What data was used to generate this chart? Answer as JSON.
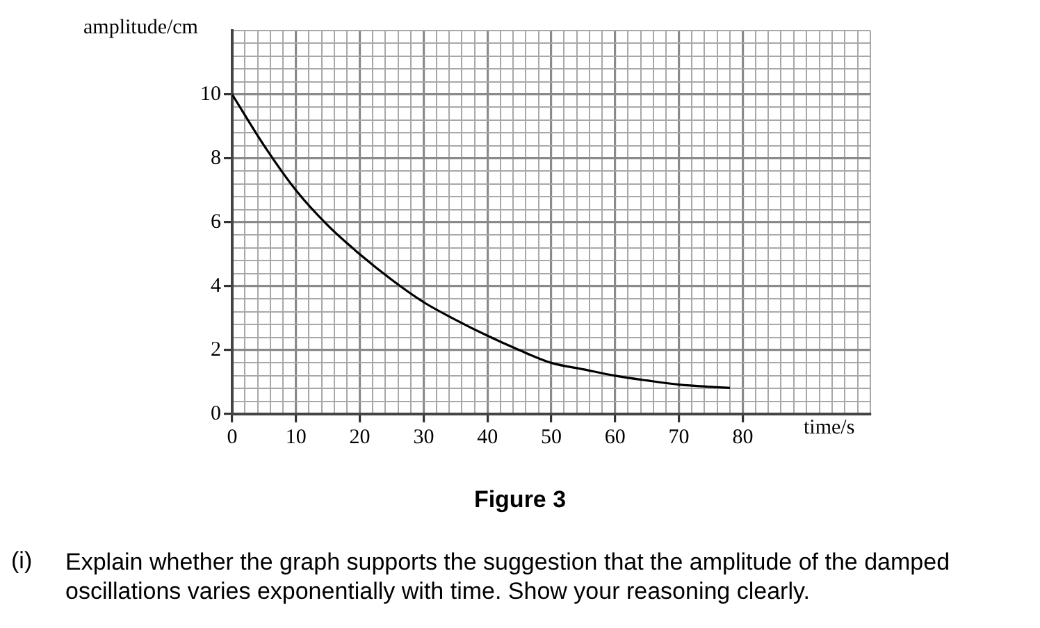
{
  "chart_data": {
    "type": "line",
    "xlabel": "time/s",
    "ylabel": "amplitude/cm",
    "x": [
      0,
      5,
      10,
      15,
      20,
      25,
      30,
      35,
      40,
      45,
      50,
      55,
      60,
      65,
      70,
      75,
      78
    ],
    "series": [
      {
        "color": "#000000",
        "values": [
          10,
          8.4,
          7.0,
          5.9,
          5.0,
          4.2,
          3.5,
          2.95,
          2.45,
          2.0,
          1.6,
          1.4,
          1.2,
          1.05,
          0.92,
          0.85,
          0.82
        ]
      }
    ],
    "xlim": [
      0,
      100
    ],
    "xticks": [
      0,
      {
        "value": 2,
        "label": null
      },
      {
        "value": 4,
        "label": null
      },
      {
        "value": 6,
        "label": null
      },
      {
        "value": 8,
        "label": null
      },
      10,
      {
        "value": 12,
        "label": null
      },
      {
        "value": 14,
        "label": null
      },
      {
        "value": 16,
        "label": null
      },
      {
        "value": 18,
        "label": null
      },
      20,
      {
        "value": 22,
        "label": null
      },
      {
        "value": 24,
        "label": null
      },
      {
        "value": 26,
        "label": null
      },
      {
        "value": 28,
        "label": null
      },
      30,
      {
        "value": 32,
        "label": null
      },
      {
        "value": 34,
        "label": null
      },
      {
        "value": 36,
        "label": null
      },
      {
        "value": 38,
        "label": null
      },
      40,
      {
        "value": 42,
        "label": null
      },
      {
        "value": 44,
        "label": null
      },
      {
        "value": 46,
        "label": null
      },
      {
        "value": 48,
        "label": null
      },
      50,
      {
        "value": 52,
        "label": null
      },
      {
        "value": 54,
        "label": null
      },
      {
        "value": 56,
        "label": null
      },
      {
        "value": 58,
        "label": null
      },
      60,
      {
        "value": 62,
        "label": null
      },
      {
        "value": 64,
        "label": null
      },
      {
        "value": 66,
        "label": null
      },
      {
        "value": 68,
        "label": null
      },
      70,
      {
        "value": 72,
        "label": null
      },
      {
        "value": 74,
        "label": null
      },
      {
        "value": 76,
        "label": null
      },
      {
        "value": 78,
        "label": null
      },
      80,
      {
        "value": 82,
        "label": null
      },
      {
        "value": 84,
        "label": null
      },
      {
        "value": 86,
        "label": null
      },
      {
        "value": 88,
        "label": null
      },
      {
        "value": 90,
        "label": null
      },
      {
        "value": 92,
        "label": null
      },
      {
        "value": 94,
        "label": null
      },
      {
        "value": 96,
        "label": null
      },
      {
        "value": 98,
        "label": null
      },
      {
        "value": 100,
        "label": null
      }
    ],
    "ylim": [
      0,
      12
    ],
    "yticks": [
      0,
      {
        "value": 0.4,
        "label": null
      },
      {
        "value": 0.8,
        "label": null
      },
      {
        "value": 1.2,
        "label": null
      },
      {
        "value": 1.6,
        "label": null
      },
      2,
      {
        "value": 2.4,
        "label": null
      },
      {
        "value": 2.8,
        "label": null
      },
      {
        "value": 3.2,
        "label": null
      },
      {
        "value": 3.6,
        "label": null
      },
      4,
      {
        "value": 4.4,
        "label": null
      },
      {
        "value": 4.8,
        "label": null
      },
      {
        "value": 5.2,
        "label": null
      },
      {
        "value": 5.6,
        "label": null
      },
      6,
      {
        "value": 6.4,
        "label": null
      },
      {
        "value": 6.8,
        "label": null
      },
      {
        "value": 7.2,
        "label": null
      },
      {
        "value": 7.6,
        "label": null
      },
      8,
      {
        "value": 8.4,
        "label": null
      },
      {
        "value": 8.8,
        "label": null
      },
      {
        "value": 9.2,
        "label": null
      },
      {
        "value": 9.6,
        "label": null
      },
      10,
      {
        "value": 10.4,
        "label": null
      },
      {
        "value": 10.8,
        "label": null
      },
      {
        "value": 11.2,
        "label": null
      },
      {
        "value": 11.6,
        "label": null
      },
      {
        "value": 12,
        "label": null
      }
    ],
    "grid": true,
    "marker": "none",
    "line_style": "solid",
    "legend": false,
    "annotations": [
      "Figure 3",
      "(i)",
      "Explain whether the graph supports the suggestion that the amplitude of the damped oscillations varies exponentially with time. Show your reasoning clearly."
    ]
  }
}
